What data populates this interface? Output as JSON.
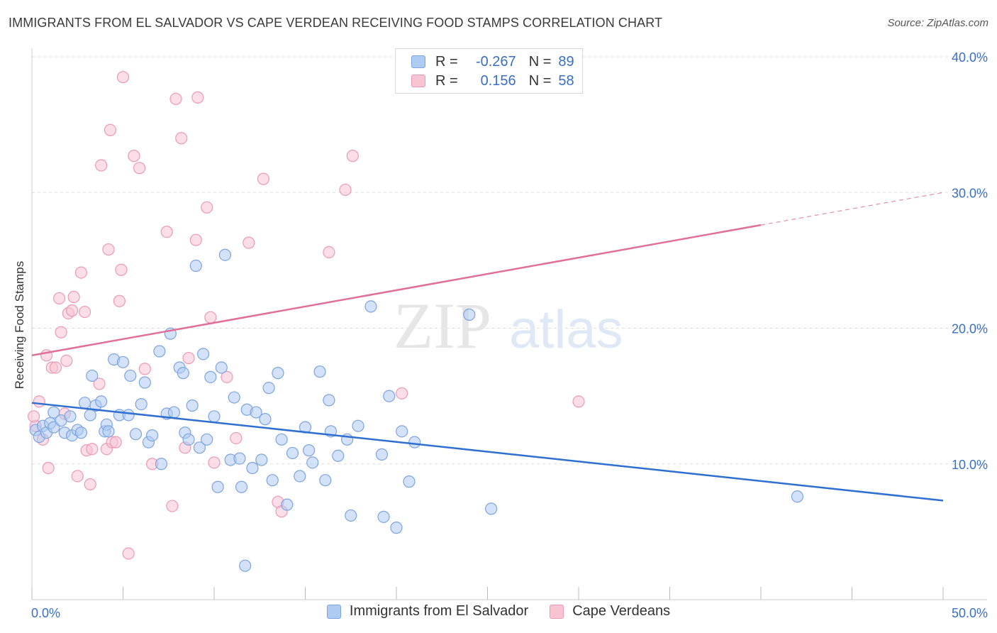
{
  "header": {
    "title": "IMMIGRANTS FROM EL SALVADOR VS CAPE VERDEAN RECEIVING FOOD STAMPS CORRELATION CHART",
    "source": "Source: ZipAtlas.com"
  },
  "watermark": {
    "part1": "ZIP",
    "part2": "atlas"
  },
  "legend": {
    "rows": [
      {
        "r_label": "R =",
        "r_value": "-0.267",
        "n_label": "N =",
        "n_value": "89"
      },
      {
        "r_label": "R =",
        "r_value": "0.156",
        "n_label": "N =",
        "n_value": "58"
      }
    ]
  },
  "colors": {
    "blue_fill": "#aecbf2",
    "blue_stroke": "#7da4de",
    "blue_line": "#2e6fd1",
    "pink_fill": "#f8c3d3",
    "pink_stroke": "#eb9ab5",
    "pink_line": "#e0709a",
    "tick_label": "#3a6fc4",
    "grid": "#dddddd"
  },
  "chart_data": {
    "type": "scatter",
    "title": "IMMIGRANTS FROM EL SALVADOR VS CAPE VERDEAN RECEIVING FOOD STAMPS CORRELATION CHART",
    "xlabel": "",
    "ylabel": "Receiving Food Stamps",
    "xlim": [
      0,
      50
    ],
    "ylim": [
      0,
      40
    ],
    "x_tick_labels": [
      "0.0%",
      "50.0%"
    ],
    "y_ticks": [
      10,
      20,
      30,
      40
    ],
    "y_tick_labels": [
      "10.0%",
      "20.0%",
      "30.0%",
      "40.0%"
    ],
    "legend_placement": "top-center",
    "series": [
      {
        "name": "Immigrants from El Salvador",
        "color": "#aecbf2",
        "trend": {
          "x": [
            0,
            50
          ],
          "y": [
            14.5,
            7.3
          ],
          "dashed_from_x": null
        },
        "points": [
          [
            0.2,
            12.5
          ],
          [
            0.4,
            12.0
          ],
          [
            0.6,
            12.8
          ],
          [
            0.8,
            12.3
          ],
          [
            1.0,
            13.0
          ],
          [
            1.2,
            12.7
          ],
          [
            1.2,
            13.8
          ],
          [
            1.6,
            13.2
          ],
          [
            1.8,
            12.3
          ],
          [
            2.1,
            13.5
          ],
          [
            2.2,
            12.1
          ],
          [
            2.5,
            12.5
          ],
          [
            2.7,
            12.3
          ],
          [
            2.9,
            14.5
          ],
          [
            3.2,
            13.6
          ],
          [
            3.3,
            16.5
          ],
          [
            3.5,
            14.3
          ],
          [
            3.8,
            14.6
          ],
          [
            4.0,
            12.4
          ],
          [
            4.1,
            12.9
          ],
          [
            4.2,
            12.4
          ],
          [
            4.5,
            17.7
          ],
          [
            4.8,
            13.6
          ],
          [
            5.0,
            17.5
          ],
          [
            5.3,
            13.6
          ],
          [
            5.4,
            16.5
          ],
          [
            5.7,
            12.2
          ],
          [
            6.0,
            14.4
          ],
          [
            6.2,
            16.0
          ],
          [
            6.4,
            11.6
          ],
          [
            6.6,
            12.1
          ],
          [
            7.0,
            18.3
          ],
          [
            7.1,
            10.0
          ],
          [
            7.4,
            13.7
          ],
          [
            7.6,
            19.6
          ],
          [
            7.8,
            13.8
          ],
          [
            8.1,
            17.1
          ],
          [
            8.3,
            16.7
          ],
          [
            8.4,
            12.3
          ],
          [
            8.6,
            11.8
          ],
          [
            8.8,
            14.3
          ],
          [
            9.0,
            24.6
          ],
          [
            9.2,
            11.2
          ],
          [
            9.4,
            18.1
          ],
          [
            9.6,
            11.8
          ],
          [
            9.8,
            16.4
          ],
          [
            10.0,
            13.5
          ],
          [
            10.2,
            8.3
          ],
          [
            10.4,
            17.1
          ],
          [
            10.6,
            25.4
          ],
          [
            10.9,
            10.3
          ],
          [
            11.1,
            14.9
          ],
          [
            11.4,
            10.4
          ],
          [
            11.5,
            8.3
          ],
          [
            11.8,
            14.0
          ],
          [
            12.1,
            9.7
          ],
          [
            12.3,
            13.8
          ],
          [
            12.6,
            10.3
          ],
          [
            12.8,
            13.3
          ],
          [
            13.0,
            15.6
          ],
          [
            13.2,
            8.8
          ],
          [
            13.5,
            16.7
          ],
          [
            13.7,
            11.8
          ],
          [
            14.0,
            7.0
          ],
          [
            14.3,
            10.8
          ],
          [
            14.7,
            9.1
          ],
          [
            15.0,
            12.7
          ],
          [
            15.2,
            11.0
          ],
          [
            15.4,
            10.1
          ],
          [
            15.8,
            16.8
          ],
          [
            16.1,
            8.8
          ],
          [
            16.3,
            14.7
          ],
          [
            16.4,
            12.4
          ],
          [
            16.8,
            10.6
          ],
          [
            17.3,
            11.8
          ],
          [
            17.5,
            6.2
          ],
          [
            17.9,
            12.8
          ],
          [
            18.6,
            21.6
          ],
          [
            19.2,
            10.7
          ],
          [
            19.3,
            6.1
          ],
          [
            19.6,
            15.0
          ],
          [
            20.0,
            5.3
          ],
          [
            20.3,
            12.4
          ],
          [
            20.7,
            8.7
          ],
          [
            21.0,
            11.6
          ],
          [
            24.0,
            21.0
          ],
          [
            25.2,
            6.7
          ],
          [
            42.0,
            7.6
          ],
          [
            11.7,
            2.5
          ]
        ]
      },
      {
        "name": "Cape Verdeans",
        "color": "#f8c3d3",
        "trend": {
          "x": [
            0,
            50
          ],
          "y": [
            18.0,
            30.0
          ],
          "dashed_from_x": 40
        },
        "points": [
          [
            0.2,
            12.8
          ],
          [
            0.4,
            14.6
          ],
          [
            0.6,
            11.8
          ],
          [
            0.8,
            18.0
          ],
          [
            0.9,
            9.7
          ],
          [
            1.1,
            17.1
          ],
          [
            1.3,
            17.1
          ],
          [
            1.5,
            22.2
          ],
          [
            1.6,
            19.7
          ],
          [
            1.8,
            13.7
          ],
          [
            1.9,
            17.6
          ],
          [
            2.0,
            21.1
          ],
          [
            2.2,
            21.3
          ],
          [
            2.3,
            22.3
          ],
          [
            2.5,
            9.1
          ],
          [
            2.7,
            24.1
          ],
          [
            2.9,
            21.2
          ],
          [
            3.0,
            11.0
          ],
          [
            3.2,
            8.5
          ],
          [
            3.3,
            11.1
          ],
          [
            3.7,
            15.9
          ],
          [
            3.8,
            32.0
          ],
          [
            4.1,
            11.1
          ],
          [
            4.2,
            25.8
          ],
          [
            4.3,
            34.6
          ],
          [
            4.4,
            11.6
          ],
          [
            4.6,
            11.6
          ],
          [
            4.8,
            22.0
          ],
          [
            4.9,
            24.3
          ],
          [
            5.0,
            38.5
          ],
          [
            5.3,
            3.4
          ],
          [
            5.6,
            32.7
          ],
          [
            5.9,
            31.8
          ],
          [
            6.2,
            17.0
          ],
          [
            6.6,
            10.0
          ],
          [
            7.4,
            27.1
          ],
          [
            7.7,
            6.9
          ],
          [
            7.9,
            36.9
          ],
          [
            8.2,
            34.0
          ],
          [
            8.4,
            11.2
          ],
          [
            8.6,
            17.8
          ],
          [
            9.0,
            26.5
          ],
          [
            9.1,
            37.0
          ],
          [
            9.6,
            28.9
          ],
          [
            9.8,
            20.8
          ],
          [
            10.0,
            10.1
          ],
          [
            10.7,
            16.4
          ],
          [
            11.2,
            11.9
          ],
          [
            11.9,
            26.3
          ],
          [
            12.7,
            31.0
          ],
          [
            13.5,
            7.2
          ],
          [
            13.7,
            6.5
          ],
          [
            16.3,
            25.6
          ],
          [
            17.2,
            30.2
          ],
          [
            17.6,
            32.7
          ],
          [
            20.3,
            15.2
          ],
          [
            30.0,
            14.6
          ],
          [
            0.1,
            13.5
          ]
        ]
      }
    ]
  },
  "bottom_legend": {
    "items": [
      {
        "label": "Immigrants from El Salvador"
      },
      {
        "label": "Cape Verdeans"
      }
    ]
  }
}
